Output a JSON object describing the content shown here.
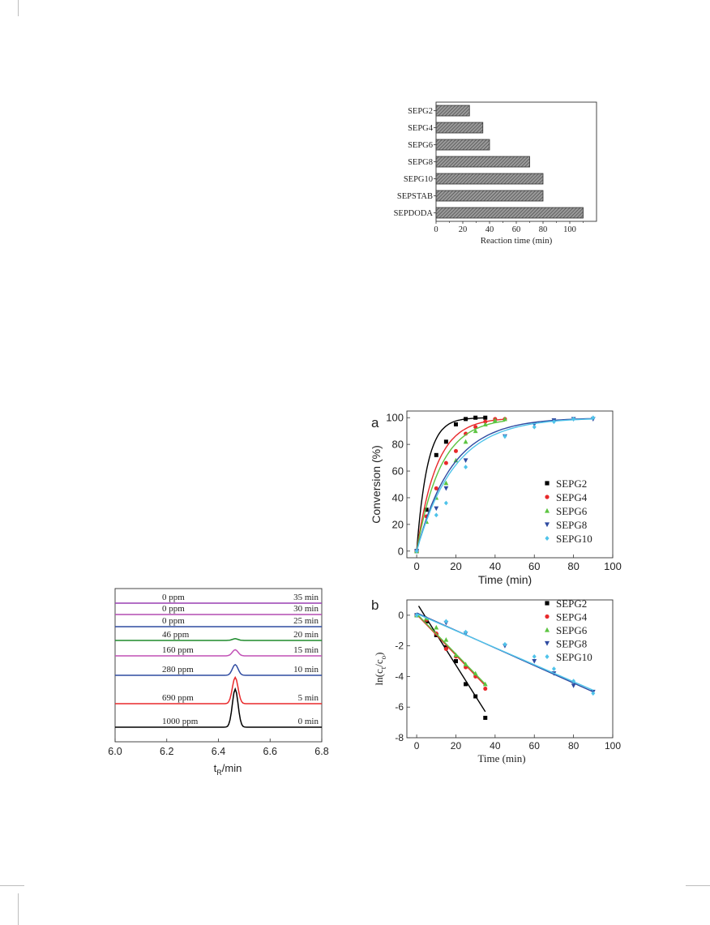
{
  "chart_data": [
    {
      "type": "bar",
      "orientation": "horizontal",
      "categories": [
        "SEPG2",
        "SEPG4",
        "SEPG6",
        "SEPG8",
        "SEPG10",
        "SEPSTAB",
        "SEPDODA"
      ],
      "values": [
        25,
        35,
        40,
        70,
        80,
        80,
        110
      ],
      "xlabel": "Reaction time (min)",
      "xlim": [
        0,
        120
      ],
      "xticks": [
        "0",
        "20",
        "40",
        "60",
        "80",
        "100"
      ],
      "bar_fill": "hatched"
    },
    {
      "type": "line",
      "panel_label": "a",
      "xlabel": "Time (min)",
      "ylabel": "Conversion (%)",
      "xlim": [
        -5,
        100
      ],
      "ylim": [
        -5,
        105
      ],
      "xticks": [
        "0",
        "20",
        "40",
        "60",
        "80",
        "100"
      ],
      "yticks": [
        "0",
        "20",
        "40",
        "60",
        "80",
        "100"
      ],
      "legend_position": "bottom-right",
      "series": [
        {
          "name": "SEPG2",
          "color": "#000000",
          "marker": "square",
          "x": [
            0,
            5,
            10,
            15,
            20,
            25,
            30,
            35
          ],
          "y": [
            0,
            31,
            72,
            82,
            95,
            99,
            100,
            100
          ],
          "k": 0.185
        },
        {
          "name": "SEPG4",
          "color": "#e8292b",
          "marker": "circle",
          "x": [
            0,
            5,
            10,
            15,
            20,
            25,
            30,
            35,
            40,
            45
          ],
          "y": [
            0,
            26,
            47,
            66,
            75,
            88,
            93,
            97,
            99,
            99
          ],
          "k": 0.1
        },
        {
          "name": "SEPG6",
          "color": "#5cc441",
          "marker": "triangle-up",
          "x": [
            0,
            5,
            10,
            15,
            20,
            25,
            30,
            35,
            40,
            45
          ],
          "y": [
            0,
            22,
            40,
            51,
            68,
            82,
            90,
            95,
            98,
            99
          ],
          "k": 0.082
        },
        {
          "name": "SEPG8",
          "color": "#2f4ba1",
          "marker": "triangle-down",
          "x": [
            0,
            10,
            15,
            25,
            45,
            60,
            70,
            80,
            90
          ],
          "y": [
            0,
            32,
            47,
            68,
            86,
            95,
            98,
            99,
            99
          ],
          "k": 0.056
        },
        {
          "name": "SEPG10",
          "color": "#4fc3ea",
          "marker": "diamond",
          "x": [
            0,
            10,
            15,
            25,
            45,
            60,
            70,
            80,
            90
          ],
          "y": [
            0,
            27,
            36,
            63,
            86,
            93,
            97,
            99,
            100
          ],
          "k": 0.052
        }
      ]
    },
    {
      "type": "scatter",
      "panel_label": "b",
      "xlabel": "Time (min)",
      "ylabel": "ln(c",
      "ylabel_sub1": "t",
      "ylabel_mid": "/c",
      "ylabel_sub2": "o",
      "ylabel_end": ")",
      "xlim": [
        -5,
        100
      ],
      "ylim": [
        -8,
        1
      ],
      "xticks": [
        "0",
        "20",
        "40",
        "60",
        "80",
        "100"
      ],
      "yticks": [
        "0",
        "-2",
        "-4",
        "-6",
        "-8"
      ],
      "legend_position": "top-right",
      "series": [
        {
          "name": "SEPG2",
          "color": "#000000",
          "marker": "square",
          "x": [
            0,
            5,
            10,
            15,
            20,
            25,
            30,
            35
          ],
          "y": [
            0,
            -0.4,
            -1.3,
            -2.1,
            -3.0,
            -4.5,
            -5.3,
            -6.7
          ],
          "fit": [
            [
              1,
              0.6
            ],
            [
              35,
              -6.3
            ]
          ]
        },
        {
          "name": "SEPG4",
          "color": "#e8292b",
          "marker": "circle",
          "x": [
            0,
            5,
            10,
            15,
            20,
            25,
            30,
            35
          ],
          "y": [
            0,
            -0.3,
            -1.2,
            -2.2,
            -2.7,
            -3.4,
            -4.0,
            -4.8
          ],
          "fit": [
            [
              0,
              0.05
            ],
            [
              35,
              -4.6
            ]
          ]
        },
        {
          "name": "SEPG6",
          "color": "#5cc441",
          "marker": "triangle-up",
          "x": [
            0,
            5,
            10,
            15,
            20,
            25,
            30,
            35
          ],
          "y": [
            0,
            -0.2,
            -0.8,
            -1.6,
            -2.6,
            -3.2,
            -3.8,
            -4.5
          ],
          "fit": [
            [
              0,
              0.1
            ],
            [
              35,
              -4.5
            ]
          ]
        },
        {
          "name": "SEPG8",
          "color": "#2f4ba1",
          "marker": "triangle-down",
          "x": [
            0,
            15,
            25,
            45,
            60,
            70,
            80,
            90
          ],
          "y": [
            0,
            -0.5,
            -1.2,
            -2.0,
            -3.0,
            -3.8,
            -4.6,
            -5.0
          ],
          "fit": [
            [
              0,
              0.15
            ],
            [
              90,
              -5.0
            ]
          ]
        },
        {
          "name": "SEPG10",
          "color": "#4fc3ea",
          "marker": "diamond",
          "x": [
            0,
            15,
            25,
            45,
            60,
            70,
            80,
            90
          ],
          "y": [
            0,
            -0.4,
            -1.1,
            -1.9,
            -2.7,
            -3.5,
            -4.3,
            -5.1
          ],
          "fit": [
            [
              0,
              0.1
            ],
            [
              90,
              -4.9
            ]
          ]
        }
      ]
    },
    {
      "type": "line",
      "subtype": "chromatogram-stack",
      "xlabel": "t",
      "xlabel_sub": "R",
      "xlabel_end": "/min",
      "xlim": [
        6.0,
        6.8
      ],
      "xticks": [
        "6.0",
        "6.2",
        "6.4",
        "6.6",
        "6.8"
      ],
      "peak_center": 6.465,
      "traces": [
        {
          "ppm": "1000 ppm",
          "time": "0 min",
          "color": "#000000",
          "peak": 1000
        },
        {
          "ppm": "690 ppm",
          "time": "5 min",
          "color": "#e8292b",
          "peak": 690
        },
        {
          "ppm": "280 ppm",
          "time": "10 min",
          "color": "#2f4ba1",
          "peak": 280
        },
        {
          "ppm": "160 ppm",
          "time": "15 min",
          "color": "#c251b6",
          "peak": 160
        },
        {
          "ppm": "46 ppm",
          "time": "20 min",
          "color": "#1e8a2c",
          "peak": 46
        },
        {
          "ppm": "0 ppm",
          "time": "25 min",
          "color": "#2f4ba1",
          "peak": 0
        },
        {
          "ppm": "0 ppm",
          "time": "30 min",
          "color": "#b44cb2",
          "peak": 0
        },
        {
          "ppm": "0 ppm",
          "time": "35 min",
          "color": "#9a3fb3",
          "peak": 0
        }
      ]
    }
  ]
}
